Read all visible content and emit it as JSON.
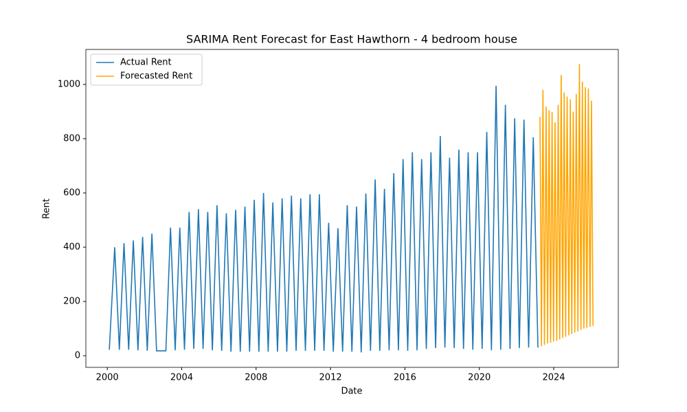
{
  "chart_data": {
    "type": "line",
    "title": "SARIMA Rent Forecast for East Hawthorn - 4 bedroom house",
    "x_label": "Date",
    "y_label": "Rent",
    "xlim": [
      1998.85,
      2027.47
    ],
    "ylim": [
      -43,
      1129
    ],
    "xticks": [
      2000,
      2004,
      2008,
      2012,
      2016,
      2020,
      2024
    ],
    "yticks": [
      0,
      200,
      400,
      600,
      800,
      1000
    ],
    "legend": "upper left",
    "series": [
      {
        "name": "Actual Rent",
        "color": "#1f77b4",
        "x": [
          2000.11,
          2000.4,
          2000.65,
          2000.9,
          2001.15,
          2001.4,
          2001.65,
          2001.9,
          2002.15,
          2002.4,
          2002.65,
          2003.15,
          2003.4,
          2003.65,
          2003.9,
          2004.15,
          2004.4,
          2004.65,
          2004.9,
          2005.15,
          2005.4,
          2005.65,
          2005.9,
          2006.15,
          2006.4,
          2006.65,
          2006.9,
          2007.15,
          2007.4,
          2007.65,
          2007.9,
          2008.15,
          2008.4,
          2008.65,
          2008.9,
          2009.15,
          2009.4,
          2009.65,
          2009.9,
          2010.15,
          2010.4,
          2010.65,
          2010.9,
          2011.15,
          2011.4,
          2011.65,
          2011.9,
          2012.15,
          2012.4,
          2012.65,
          2012.9,
          2013.15,
          2013.4,
          2013.65,
          2013.9,
          2014.15,
          2014.4,
          2014.65,
          2014.9,
          2015.15,
          2015.4,
          2015.65,
          2015.9,
          2016.15,
          2016.4,
          2016.65,
          2016.9,
          2017.15,
          2017.4,
          2017.65,
          2017.9,
          2018.15,
          2018.4,
          2018.65,
          2018.9,
          2019.15,
          2019.4,
          2019.65,
          2019.9,
          2020.15,
          2020.4,
          2020.65,
          2020.9,
          2021.15,
          2021.4,
          2021.65,
          2021.9,
          2022.15,
          2022.4,
          2022.65,
          2022.9,
          2023.15
        ],
        "values": [
          22,
          400,
          22,
          415,
          22,
          425,
          20,
          438,
          18,
          450,
          18,
          18,
          472,
          20,
          472,
          22,
          530,
          25,
          540,
          25,
          530,
          20,
          555,
          18,
          525,
          15,
          538,
          15,
          550,
          15,
          575,
          15,
          600,
          15,
          565,
          15,
          580,
          15,
          590,
          18,
          580,
          18,
          595,
          18,
          595,
          18,
          490,
          15,
          470,
          15,
          555,
          15,
          550,
          12,
          598,
          18,
          650,
          18,
          615,
          20,
          673,
          20,
          725,
          18,
          750,
          20,
          725,
          25,
          750,
          28,
          810,
          30,
          730,
          28,
          760,
          25,
          750,
          22,
          750,
          25,
          825,
          20,
          995,
          22,
          925,
          25,
          875,
          28,
          870,
          30,
          805,
          30
        ]
      },
      {
        "name": "Forecasted Rent",
        "color": "#ffa500",
        "x": [
          2023.26,
          2023.34,
          2023.42,
          2023.5,
          2023.59,
          2023.67,
          2023.75,
          2023.83,
          2023.91,
          2023.99,
          2024.07,
          2024.16,
          2024.24,
          2024.32,
          2024.4,
          2024.48,
          2024.56,
          2024.64,
          2024.72,
          2024.81,
          2024.89,
          2024.97,
          2025.05,
          2025.13,
          2025.21,
          2025.3,
          2025.38,
          2025.46,
          2025.54,
          2025.62,
          2025.7,
          2025.78,
          2025.86,
          2025.95,
          2026.03,
          2026.11
        ],
        "values": [
          880,
          35,
          980,
          40,
          918,
          45,
          905,
          48,
          898,
          52,
          860,
          55,
          925,
          60,
          1035,
          65,
          970,
          70,
          955,
          75,
          945,
          80,
          900,
          85,
          965,
          90,
          1075,
          95,
          1010,
          100,
          990,
          103,
          985,
          106,
          940,
          110
        ]
      }
    ]
  }
}
